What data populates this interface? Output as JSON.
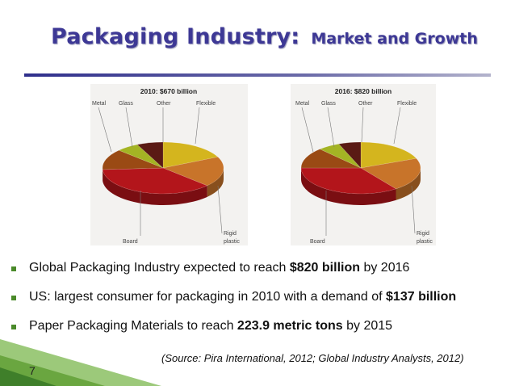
{
  "slide": {
    "title_main": "Packaging Industry:",
    "title_sub": "Market and Growth",
    "page_number": "7",
    "source": "(Source: Pira International, 2012;  Global Industry Analysts,  2012)"
  },
  "bullets": [
    {
      "pre": "Global Packaging Industry expected to reach ",
      "bold": "$820 billion",
      "post": " by 2016"
    },
    {
      "pre": "US: largest consumer for packaging in 2010 with a demand of ",
      "bold": "$137 billion",
      "post": ""
    },
    {
      "pre": "Paper Packaging Materials to reach ",
      "bold": "223.9 metric tons",
      "post": " by 2015"
    }
  ],
  "colors": {
    "Flexible": "#d4b51e",
    "Rigid plastic": "#c8742a",
    "Board": "#b3151b",
    "Metal": "#9a4a14",
    "Glass": "#a4b424",
    "Other": "#5a1a14"
  },
  "chart_data": [
    {
      "type": "pie",
      "title": "2010: $670 billion",
      "categories": [
        "Flexible",
        "Rigid plastic",
        "Board",
        "Metal",
        "Glass",
        "Other"
      ],
      "values": [
        18,
        19,
        37,
        13,
        6,
        7
      ]
    },
    {
      "type": "pie",
      "title": "2016: $820 billion",
      "categories": [
        "Flexible",
        "Rigid plastic",
        "Board",
        "Metal",
        "Glass",
        "Other"
      ],
      "values": [
        19,
        21,
        35,
        13,
        6,
        6
      ]
    }
  ],
  "labels": {
    "metal": "Metal",
    "glass": "Glass",
    "other": "Other",
    "flexible": "Flexible",
    "board": "Board",
    "rigid_line1": "Rigid",
    "rigid_line2": "plastic"
  }
}
